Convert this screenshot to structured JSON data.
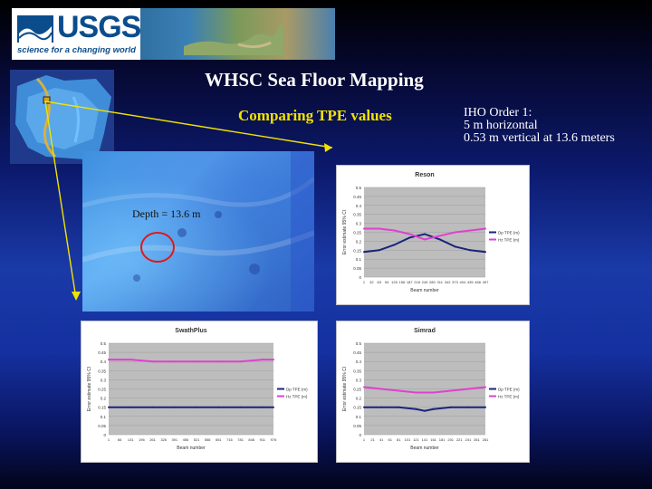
{
  "header": {
    "logo_text": "USGS",
    "logo_tagline": "science for a changing world"
  },
  "title": "WHSC Sea Floor Mapping",
  "subtitle": "Comparing TPE values",
  "iho": {
    "line1": "IHO Order 1:",
    "line2": "5 m horizontal",
    "line3": "0.53 m vertical at 13.6 meters"
  },
  "map": {
    "depth_label": "Depth = 13.6 m"
  },
  "colors": {
    "title_text": "#ffffff",
    "subtitle_text": "#f2e200",
    "depth_circle": "#e01818",
    "pointer_lines": "#f2e200",
    "dp_series": "#1a237e",
    "hz_series": "#e040d0",
    "plot_background": "#bdbdbd"
  },
  "chart_data": [
    {
      "type": "line",
      "title": "Reson",
      "xlabel": "Beam number",
      "ylabel": "Error estimate 95% CI",
      "x_ticks": [
        "1",
        "32",
        "63",
        "94",
        "125",
        "156",
        "187",
        "218",
        "249",
        "280",
        "311",
        "342",
        "373",
        "404",
        "435",
        "466",
        "497"
      ],
      "yticks": [
        "0",
        "0.05",
        "0.1",
        "0.15",
        "0.2",
        "0.25",
        "0.3",
        "0.35",
        "0.4",
        "0.45",
        "0.5"
      ],
      "ylim": [
        0,
        0.5
      ],
      "x": [
        1,
        63,
        125,
        187,
        249,
        311,
        373,
        435,
        497
      ],
      "series": [
        {
          "name": "Dp TPE (m)",
          "color": "#1a237e",
          "values": [
            0.14,
            0.15,
            0.18,
            0.22,
            0.24,
            0.21,
            0.17,
            0.15,
            0.14
          ]
        },
        {
          "name": "Hz TPE (m)",
          "color": "#e040d0",
          "values": [
            0.27,
            0.27,
            0.26,
            0.24,
            0.21,
            0.23,
            0.25,
            0.26,
            0.27
          ]
        }
      ],
      "legend": "right"
    },
    {
      "type": "line",
      "title": "SwathPlus",
      "xlabel": "Beam number",
      "ylabel": "Error estimate 95% CI",
      "x_ticks": [
        "1",
        "66",
        "131",
        "196",
        "261",
        "326",
        "391",
        "456",
        "521",
        "586",
        "651",
        "716",
        "781",
        "846",
        "911",
        "976"
      ],
      "yticks": [
        "0",
        "0.05",
        "0.1",
        "0.15",
        "0.2",
        "0.25",
        "0.3",
        "0.35",
        "0.4",
        "0.45",
        "0.5"
      ],
      "ylim": [
        0,
        0.5
      ],
      "x": [
        1,
        131,
        261,
        391,
        521,
        651,
        781,
        911,
        976
      ],
      "series": [
        {
          "name": "Dp TPE (m)",
          "color": "#1a237e",
          "values": [
            0.15,
            0.15,
            0.15,
            0.15,
            0.15,
            0.15,
            0.15,
            0.15,
            0.15
          ]
        },
        {
          "name": "Hz TPE (m)",
          "color": "#e040d0",
          "values": [
            0.41,
            0.41,
            0.4,
            0.4,
            0.4,
            0.4,
            0.4,
            0.41,
            0.41
          ]
        }
      ],
      "legend": "right"
    },
    {
      "type": "line",
      "title": "Simrad",
      "xlabel": "Beam number",
      "ylabel": "Error estimate 95% CI",
      "x_ticks": [
        "1",
        "21",
        "41",
        "61",
        "81",
        "101",
        "121",
        "141",
        "161",
        "181",
        "201",
        "221",
        "241",
        "261",
        "281"
      ],
      "yticks": [
        "0",
        "0.05",
        "0.1",
        "0.15",
        "0.2",
        "0.25",
        "0.3",
        "0.35",
        "0.4",
        "0.45",
        "0.5"
      ],
      "ylim": [
        0,
        0.5
      ],
      "x": [
        1,
        41,
        81,
        121,
        141,
        161,
        201,
        241,
        281
      ],
      "series": [
        {
          "name": "Dp TPE (m)",
          "color": "#1a237e",
          "values": [
            0.15,
            0.15,
            0.15,
            0.14,
            0.13,
            0.14,
            0.15,
            0.15,
            0.15
          ]
        },
        {
          "name": "Hz TPE (m)",
          "color": "#e040d0",
          "values": [
            0.26,
            0.25,
            0.24,
            0.23,
            0.23,
            0.23,
            0.24,
            0.25,
            0.26
          ]
        }
      ],
      "legend": "right"
    }
  ]
}
